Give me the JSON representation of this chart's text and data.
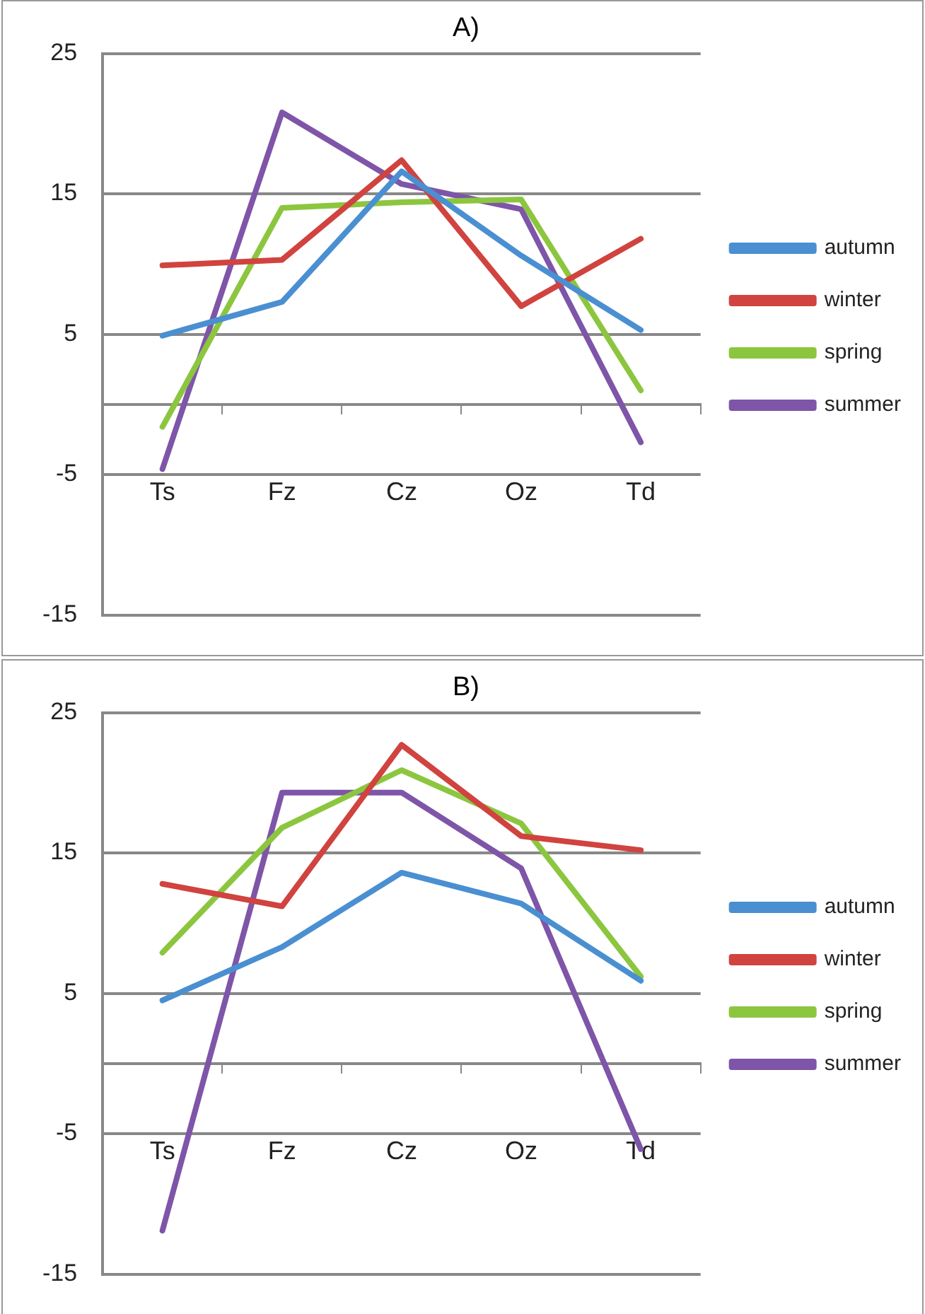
{
  "chart_data": [
    {
      "type": "line",
      "title": "A)",
      "categories": [
        "Ts",
        "Fz",
        "Cz",
        "Oz",
        "Td"
      ],
      "ylim": [
        -15,
        25
      ],
      "yticks": [
        -15,
        -5,
        5,
        15,
        25
      ],
      "grid": "y",
      "legend": "right",
      "marker": "none",
      "line_style": "solid",
      "series": [
        {
          "name": "autumn",
          "color": "#4a8fd1",
          "values": [
            4.9,
            7.3,
            16.6,
            10.6,
            5.3
          ]
        },
        {
          "name": "winter",
          "color": "#d0433f",
          "values": [
            9.9,
            10.3,
            17.4,
            7.0,
            11.8
          ]
        },
        {
          "name": "spring",
          "color": "#8cc63f",
          "values": [
            -1.6,
            14.0,
            14.4,
            14.6,
            1.0
          ]
        },
        {
          "name": "summer",
          "color": "#7e55a8",
          "values": [
            -4.6,
            20.8,
            15.7,
            13.9,
            -2.7
          ]
        }
      ]
    },
    {
      "type": "line",
      "title": "B)",
      "categories": [
        "Ts",
        "Fz",
        "Cz",
        "Oz",
        "Td"
      ],
      "ylim": [
        -15,
        25
      ],
      "yticks": [
        -15,
        -5,
        5,
        15,
        25
      ],
      "grid": "y",
      "legend": "right",
      "marker": "none",
      "line_style": "solid",
      "series": [
        {
          "name": "autumn",
          "color": "#4a8fd1",
          "values": [
            4.5,
            8.3,
            13.6,
            11.4,
            5.9
          ]
        },
        {
          "name": "winter",
          "color": "#d0433f",
          "values": [
            12.8,
            11.2,
            22.7,
            16.2,
            15.2
          ]
        },
        {
          "name": "spring",
          "color": "#8cc63f",
          "values": [
            7.9,
            16.8,
            20.9,
            17.1,
            6.2
          ]
        },
        {
          "name": "summer",
          "color": "#7e55a8",
          "values": [
            -11.9,
            19.3,
            19.3,
            13.9,
            -6.1
          ]
        }
      ]
    }
  ]
}
